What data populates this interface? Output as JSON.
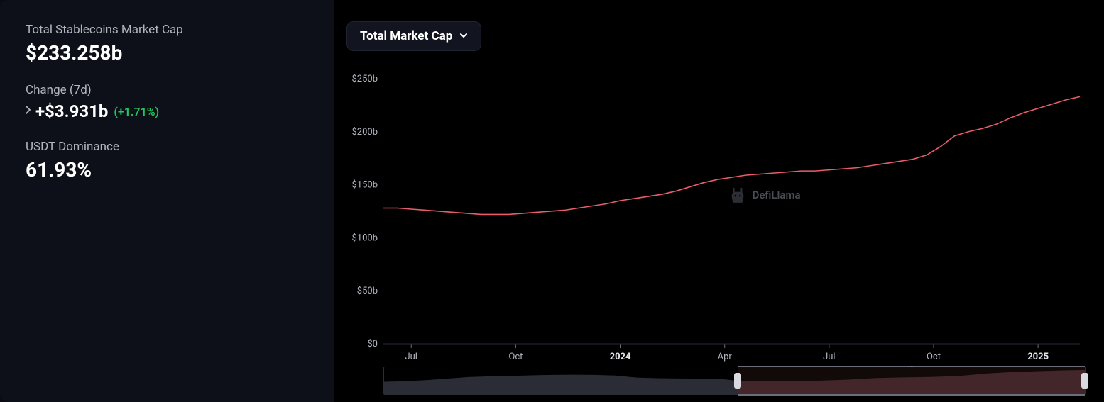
{
  "sidebar": {
    "market_cap_label": "Total Stablecoins Market Cap",
    "market_cap_value": "$233.258b",
    "change_label": "Change (7d)",
    "change_value": "+$3.931b",
    "change_pct": "(+1.71%)",
    "change_pct_color": "#22c55e",
    "dominance_label": "USDT Dominance",
    "dominance_value": "61.93%"
  },
  "dropdown": {
    "label": "Total Market Cap"
  },
  "watermark": {
    "text": "DefiLlama"
  },
  "chart": {
    "type": "line",
    "line_color": "#e85d6c",
    "line_width": 1.6,
    "background_color": "#000000",
    "grid_color": "#101218",
    "axis_text_color": "#b0b5be",
    "axis_bold_color": "#e5e7eb",
    "y": {
      "min": 0,
      "max": 260,
      "ticks": [
        0,
        50,
        100,
        150,
        200,
        250
      ],
      "tick_labels": [
        "$0",
        "$50b",
        "$100b",
        "$150b",
        "$200b",
        "$250b"
      ]
    },
    "x": {
      "tick_positions": [
        0.04,
        0.19,
        0.34,
        0.49,
        0.64,
        0.79,
        0.94
      ],
      "tick_labels": [
        "Jul",
        "Oct",
        "2024",
        "Apr",
        "Jul",
        "Oct",
        "2025"
      ],
      "tick_bold": [
        false,
        false,
        true,
        false,
        false,
        false,
        true
      ]
    },
    "series": [
      [
        0.0,
        128
      ],
      [
        0.02,
        128
      ],
      [
        0.04,
        127
      ],
      [
        0.06,
        126
      ],
      [
        0.08,
        125
      ],
      [
        0.1,
        124
      ],
      [
        0.12,
        123
      ],
      [
        0.14,
        122
      ],
      [
        0.16,
        122
      ],
      [
        0.18,
        122
      ],
      [
        0.2,
        123
      ],
      [
        0.22,
        124
      ],
      [
        0.24,
        125
      ],
      [
        0.26,
        126
      ],
      [
        0.28,
        128
      ],
      [
        0.3,
        130
      ],
      [
        0.32,
        132
      ],
      [
        0.34,
        135
      ],
      [
        0.36,
        137
      ],
      [
        0.38,
        139
      ],
      [
        0.4,
        141
      ],
      [
        0.42,
        144
      ],
      [
        0.44,
        148
      ],
      [
        0.46,
        152
      ],
      [
        0.48,
        155
      ],
      [
        0.5,
        157
      ],
      [
        0.52,
        159
      ],
      [
        0.54,
        160
      ],
      [
        0.56,
        161
      ],
      [
        0.58,
        162
      ],
      [
        0.6,
        163
      ],
      [
        0.62,
        163
      ],
      [
        0.64,
        164
      ],
      [
        0.66,
        165
      ],
      [
        0.68,
        166
      ],
      [
        0.7,
        168
      ],
      [
        0.72,
        170
      ],
      [
        0.74,
        172
      ],
      [
        0.76,
        174
      ],
      [
        0.78,
        178
      ],
      [
        0.8,
        186
      ],
      [
        0.82,
        196
      ],
      [
        0.84,
        200
      ],
      [
        0.86,
        203
      ],
      [
        0.88,
        207
      ],
      [
        0.9,
        213
      ],
      [
        0.92,
        218
      ],
      [
        0.94,
        222
      ],
      [
        0.96,
        226
      ],
      [
        0.98,
        230
      ],
      [
        1.0,
        233
      ]
    ]
  },
  "brush": {
    "selection_start": 0.505,
    "selection_end": 1.0,
    "full_series": [
      [
        0.0,
        120
      ],
      [
        0.03,
        125
      ],
      [
        0.06,
        135
      ],
      [
        0.09,
        150
      ],
      [
        0.12,
        165
      ],
      [
        0.15,
        172
      ],
      [
        0.18,
        176
      ],
      [
        0.21,
        182
      ],
      [
        0.24,
        186
      ],
      [
        0.27,
        188
      ],
      [
        0.3,
        186
      ],
      [
        0.33,
        180
      ],
      [
        0.36,
        160
      ],
      [
        0.39,
        154
      ],
      [
        0.42,
        152
      ],
      [
        0.45,
        150
      ],
      [
        0.48,
        148
      ],
      [
        0.505,
        128
      ],
      [
        0.54,
        124
      ],
      [
        0.58,
        124
      ],
      [
        0.62,
        130
      ],
      [
        0.66,
        140
      ],
      [
        0.7,
        155
      ],
      [
        0.74,
        162
      ],
      [
        0.78,
        166
      ],
      [
        0.82,
        176
      ],
      [
        0.86,
        200
      ],
      [
        0.9,
        215
      ],
      [
        0.94,
        224
      ],
      [
        0.97,
        230
      ],
      [
        1.0,
        233
      ]
    ],
    "full_max": 233,
    "fill_left": "#2a2d36",
    "fill_right": "#3a2326",
    "border_color": "#2a2d36"
  }
}
